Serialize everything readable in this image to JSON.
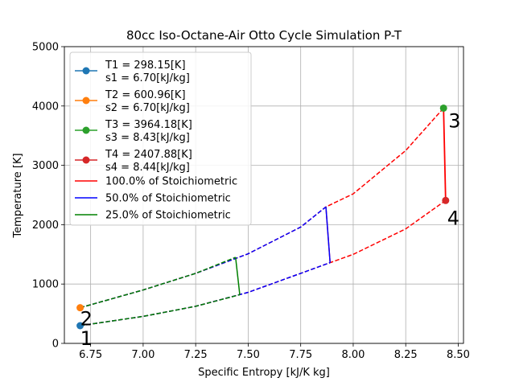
{
  "chart_data": {
    "type": "line",
    "title": "80cc Iso-Octane-Air Otto Cycle Simulation P-T",
    "xlabel": "Specific Entropy [kJ/K kg]",
    "ylabel": "Temperature [K]",
    "xlim": [
      6.625,
      8.525
    ],
    "ylim": [
      0,
      5000
    ],
    "xticks": [
      6.75,
      7.0,
      7.25,
      7.5,
      7.75,
      8.0,
      8.25,
      8.5
    ],
    "xtick_labels": [
      "6.75",
      "7.00",
      "7.25",
      "7.50",
      "7.75",
      "8.00",
      "8.25",
      "8.50"
    ],
    "yticks": [
      0,
      1000,
      2000,
      3000,
      4000,
      5000
    ],
    "ytick_labels": [
      "0",
      "1000",
      "2000",
      "3000",
      "4000",
      "5000"
    ],
    "grid": true,
    "legend_position": "upper-left",
    "points": [
      {
        "label": "1",
        "legend_line1": "T1 = 298.15[K]",
        "legend_line2": "s1 = 6.70[kJ/kg]",
        "x": 6.7,
        "y": 298.15,
        "color": "#1f77b4"
      },
      {
        "label": "2",
        "legend_line1": "T2 = 600.96[K]",
        "legend_line2": "s2 = 6.70[kJ/kg]",
        "x": 6.7,
        "y": 600.96,
        "color": "#ff7f0e"
      },
      {
        "label": "3",
        "legend_line1": "T3 = 3964.18[K]",
        "legend_line2": "s3 = 8.43[kJ/kg]",
        "x": 8.43,
        "y": 3964.18,
        "color": "#2ca02c"
      },
      {
        "label": "4",
        "legend_line1": "T4 = 2407.88[K]",
        "legend_line2": "s4 = 8.44[kJ/kg]",
        "x": 8.44,
        "y": 2407.88,
        "color": "#d62728"
      }
    ],
    "series": [
      {
        "name": "100.0% of Stoichiometric",
        "color": "#ff0000",
        "lower_curve": [
          [
            6.7,
            298.15
          ],
          [
            7.0,
            455
          ],
          [
            7.25,
            625
          ],
          [
            7.5,
            860
          ],
          [
            7.75,
            1180
          ],
          [
            7.89,
            1360
          ],
          [
            8.0,
            1500
          ],
          [
            8.25,
            1930
          ],
          [
            8.44,
            2407.88
          ]
        ],
        "upper_curve": [
          [
            6.7,
            600.96
          ],
          [
            7.0,
            900
          ],
          [
            7.25,
            1180
          ],
          [
            7.5,
            1510
          ],
          [
            7.75,
            1960
          ],
          [
            7.87,
            2300
          ],
          [
            8.0,
            2520
          ],
          [
            8.25,
            3250
          ],
          [
            8.43,
            3964.18
          ]
        ],
        "heat_line": [
          [
            7.87,
            2300
          ],
          [
            7.89,
            1360
          ]
        ],
        "heat_line_solid_full": [
          [
            8.43,
            3964.18
          ],
          [
            8.44,
            2407.88
          ]
        ]
      },
      {
        "name": "50.0% of Stoichiometric",
        "color": "#0000ff",
        "lower_curve": [
          [
            6.7,
            298.15
          ],
          [
            7.0,
            455
          ],
          [
            7.25,
            625
          ],
          [
            7.5,
            860
          ],
          [
            7.75,
            1180
          ],
          [
            7.89,
            1360
          ]
        ],
        "upper_curve": [
          [
            6.7,
            600.96
          ],
          [
            7.0,
            900
          ],
          [
            7.25,
            1180
          ],
          [
            7.5,
            1510
          ],
          [
            7.75,
            1960
          ],
          [
            7.87,
            2300
          ]
        ],
        "heat_line": [
          [
            7.87,
            2300
          ],
          [
            7.89,
            1360
          ]
        ]
      },
      {
        "name": "25.0% of Stoichiometric",
        "color": "#008000",
        "lower_curve": [
          [
            6.7,
            298.15
          ],
          [
            7.0,
            455
          ],
          [
            7.25,
            625
          ],
          [
            7.46,
            820
          ]
        ],
        "upper_curve": [
          [
            6.7,
            600.96
          ],
          [
            7.0,
            900
          ],
          [
            7.25,
            1180
          ],
          [
            7.44,
            1450
          ]
        ],
        "heat_line": [
          [
            7.44,
            1450
          ],
          [
            7.46,
            820
          ]
        ]
      }
    ]
  }
}
